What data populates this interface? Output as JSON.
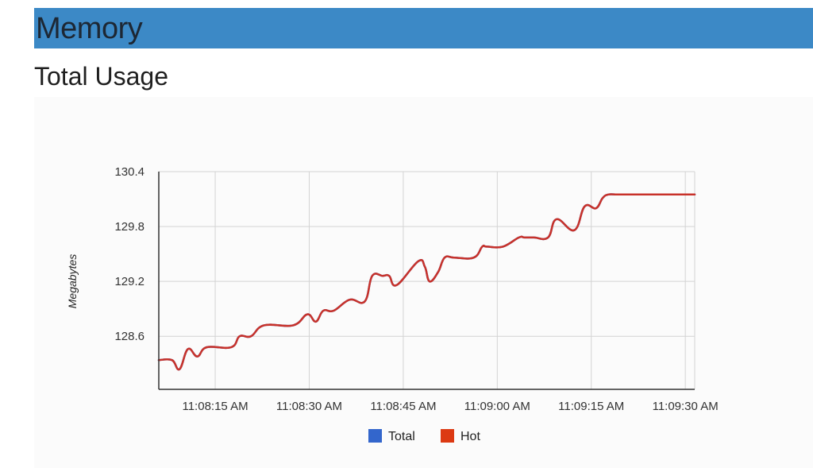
{
  "header": {
    "title": "Memory"
  },
  "chart_data": {
    "type": "line",
    "title": "Total Usage",
    "xlabel": "",
    "ylabel": "Megabytes",
    "ylim": [
      128.02,
      130.4
    ],
    "yticks": [
      128.6,
      129.2,
      129.8,
      130.4
    ],
    "ytick_labels": [
      "128.6",
      "129.2",
      "129.8",
      "130.4"
    ],
    "xlim": [
      0,
      57
    ],
    "xticks": [
      6,
      16,
      26,
      36,
      46,
      56
    ],
    "xtick_labels": [
      "11:08:15 AM",
      "11:08:30 AM",
      "11:08:45 AM",
      "11:09:00 AM",
      "11:09:15 AM",
      "11:09:30 AM"
    ],
    "grid": true,
    "legend_position": "bottom",
    "series": [
      {
        "name": "Total",
        "color": "#3366cc",
        "x": [
          0,
          1.4,
          2.2,
          3.1,
          4.1,
          5.1,
          7.7,
          8.6,
          9.8,
          11.2,
          14.3,
          15.8,
          16.7,
          17.5,
          18.6,
          20.3,
          21.9,
          22.7,
          23.8,
          24.5,
          25.3,
          27.6,
          28.3,
          28.8,
          29.7,
          30.4,
          31.4,
          33.5,
          34.4,
          34.9,
          36.6,
          38.3,
          38.9,
          39.9,
          41.4,
          42.3,
          44.2,
          45.3,
          46.5,
          47.2,
          47.8,
          48.7,
          49.4,
          50.7,
          52.1,
          57
        ],
        "y": [
          128.34,
          128.34,
          128.24,
          128.46,
          128.38,
          128.48,
          128.48,
          128.6,
          128.6,
          128.72,
          128.72,
          128.84,
          128.76,
          128.88,
          128.88,
          129.0,
          128.98,
          129.26,
          129.26,
          129.26,
          129.16,
          129.42,
          129.36,
          129.2,
          129.3,
          129.46,
          129.46,
          129.46,
          129.58,
          129.58,
          129.58,
          129.68,
          129.68,
          129.68,
          129.68,
          129.88,
          129.76,
          130.02,
          130.0,
          130.11,
          130.15,
          130.15,
          130.15,
          130.15,
          130.15,
          130.15
        ]
      },
      {
        "name": "Hot",
        "color": "#dc3912",
        "x": [
          0,
          1.4,
          2.2,
          3.1,
          4.1,
          5.1,
          7.7,
          8.6,
          9.8,
          11.2,
          14.3,
          15.8,
          16.7,
          17.5,
          18.6,
          20.3,
          21.9,
          22.7,
          23.8,
          24.5,
          25.3,
          27.6,
          28.3,
          28.8,
          29.7,
          30.4,
          31.4,
          33.5,
          34.4,
          34.9,
          36.6,
          38.3,
          38.9,
          39.9,
          41.4,
          42.3,
          44.2,
          45.3,
          46.5,
          47.2,
          47.8,
          48.7,
          49.4,
          50.7,
          52.1,
          57
        ],
        "y": [
          128.34,
          128.34,
          128.24,
          128.46,
          128.38,
          128.48,
          128.48,
          128.6,
          128.6,
          128.72,
          128.72,
          128.84,
          128.76,
          128.88,
          128.88,
          129.0,
          128.98,
          129.26,
          129.26,
          129.26,
          129.16,
          129.42,
          129.36,
          129.2,
          129.3,
          129.46,
          129.46,
          129.46,
          129.58,
          129.58,
          129.58,
          129.68,
          129.68,
          129.68,
          129.68,
          129.88,
          129.76,
          130.02,
          130.0,
          130.11,
          130.15,
          130.15,
          130.15,
          130.15,
          130.15,
          130.15
        ]
      }
    ],
    "colors": {
      "line": "#c8322a",
      "grid": "#d3d3d3",
      "axis": "#333333"
    }
  }
}
